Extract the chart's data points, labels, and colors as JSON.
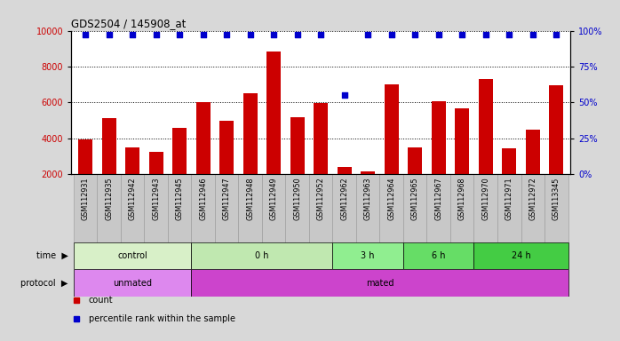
{
  "title": "GDS2504 / 145908_at",
  "samples": [
    "GSM112931",
    "GSM112935",
    "GSM112942",
    "GSM112943",
    "GSM112945",
    "GSM112946",
    "GSM112947",
    "GSM112948",
    "GSM112949",
    "GSM112950",
    "GSM112952",
    "GSM112962",
    "GSM112963",
    "GSM112964",
    "GSM112965",
    "GSM112967",
    "GSM112968",
    "GSM112970",
    "GSM112971",
    "GSM112972",
    "GSM113345"
  ],
  "counts": [
    3950,
    5100,
    3500,
    3250,
    4550,
    6000,
    4950,
    6500,
    8850,
    5150,
    5950,
    2400,
    2150,
    7000,
    3500,
    6050,
    5650,
    7300,
    3450,
    4450,
    6950
  ],
  "percentile_ranks": [
    97,
    97,
    97,
    97,
    97,
    97,
    97,
    97,
    97,
    97,
    97,
    55,
    97,
    97,
    97,
    97,
    97,
    97,
    97,
    97,
    97
  ],
  "bar_color": "#cc0000",
  "dot_color": "#0000cc",
  "ylim_left": [
    2000,
    10000
  ],
  "ylim_right": [
    0,
    100
  ],
  "yticks_left": [
    2000,
    4000,
    6000,
    8000,
    10000
  ],
  "yticks_right": [
    0,
    25,
    50,
    75,
    100
  ],
  "time_groups": [
    {
      "label": "control",
      "start": 0,
      "end": 5,
      "color": "#d8f0c8"
    },
    {
      "label": "0 h",
      "start": 5,
      "end": 11,
      "color": "#c0e8b0"
    },
    {
      "label": "3 h",
      "start": 11,
      "end": 14,
      "color": "#90ee90"
    },
    {
      "label": "6 h",
      "start": 14,
      "end": 17,
      "color": "#66dd66"
    },
    {
      "label": "24 h",
      "start": 17,
      "end": 21,
      "color": "#44cc44"
    }
  ],
  "protocol_groups": [
    {
      "label": "unmated",
      "start": 0,
      "end": 5,
      "color": "#dd88ee"
    },
    {
      "label": "mated",
      "start": 5,
      "end": 21,
      "color": "#cc44cc"
    }
  ],
  "ylabel_left_color": "#cc0000",
  "ylabel_right_color": "#0000cc",
  "background_color": "#d8d8d8",
  "plot_bg_color": "#ffffff",
  "label_row_bg": "#c8c8c8"
}
